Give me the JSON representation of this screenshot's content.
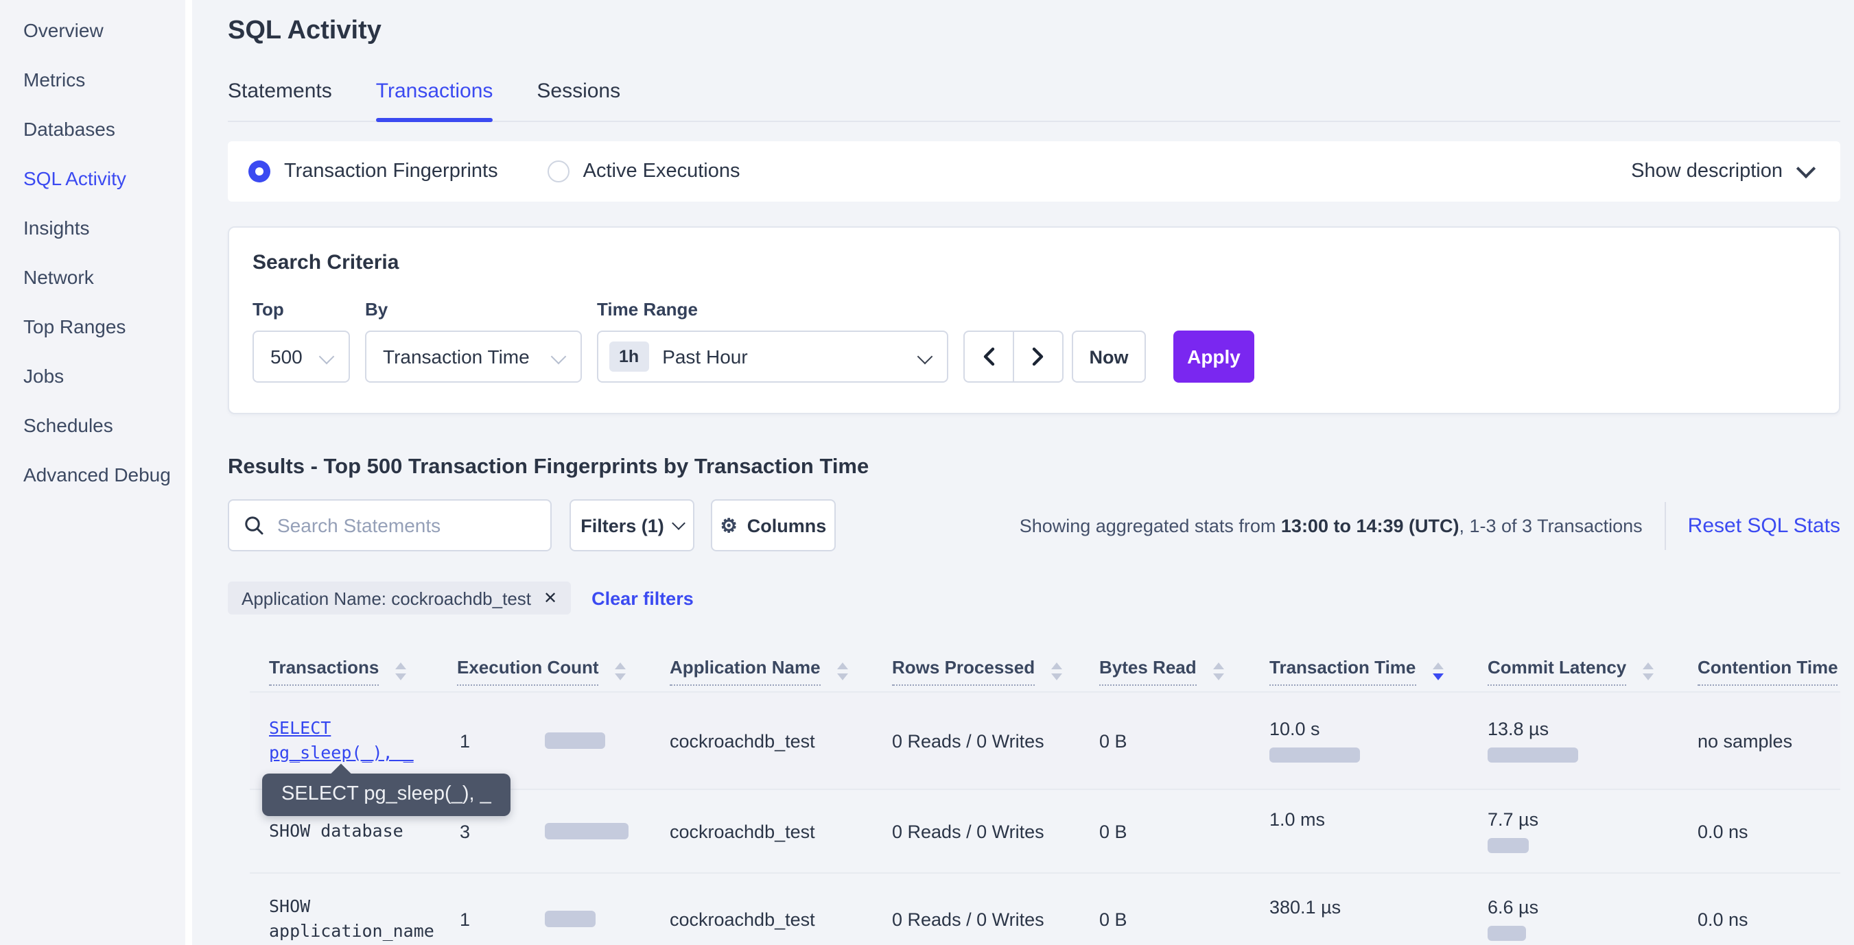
{
  "colors": {
    "accent_blue": "#3b4af1",
    "link_blue": "#3345f0",
    "apply_purple": "#7a27f0",
    "bar_fill": "#c5cbdd",
    "tooltip_bg": "#4c5568",
    "hovered_row_bg": "#f1f2f7"
  },
  "sidebar": {
    "items": [
      {
        "label": "Overview",
        "active": false
      },
      {
        "label": "Metrics",
        "active": false
      },
      {
        "label": "Databases",
        "active": false
      },
      {
        "label": "SQL Activity",
        "active": true
      },
      {
        "label": "Insights",
        "active": false
      },
      {
        "label": "Network",
        "active": false
      },
      {
        "label": "Top Ranges",
        "active": false
      },
      {
        "label": "Jobs",
        "active": false
      },
      {
        "label": "Schedules",
        "active": false
      },
      {
        "label": "Advanced Debug",
        "active": false
      }
    ]
  },
  "header": {
    "title": "SQL Activity",
    "tabs": [
      {
        "label": "Statements",
        "active": false
      },
      {
        "label": "Transactions",
        "active": true
      },
      {
        "label": "Sessions",
        "active": false
      }
    ]
  },
  "view_toggle": {
    "options": [
      {
        "label": "Transaction Fingerprints",
        "selected": true
      },
      {
        "label": "Active Executions",
        "selected": false
      }
    ],
    "show_description_label": "Show description"
  },
  "search_criteria": {
    "title": "Search Criteria",
    "top": {
      "label": "Top",
      "value": "500"
    },
    "by": {
      "label": "By",
      "value": "Transaction Time"
    },
    "time_range": {
      "label": "Time Range",
      "badge": "1h",
      "value": "Past Hour"
    },
    "now_label": "Now",
    "apply_label": "Apply"
  },
  "results": {
    "heading": "Results - Top 500 Transaction Fingerprints by Transaction Time",
    "search_placeholder": "Search Statements",
    "filters_label": "Filters (1)",
    "columns_label": "Columns",
    "stats_prefix": "Showing aggregated stats from ",
    "stats_range": "13:00 to 14:39 (UTC)",
    "stats_suffix": ", 1-3 of 3 Transactions",
    "reset_label": "Reset SQL Stats",
    "filter_chip": "Application Name: cockroachdb_test",
    "chip_close": "✕",
    "clear_filters_label": "Clear filters"
  },
  "table": {
    "columns": [
      {
        "label": "Transactions",
        "sort": null
      },
      {
        "label": "Execution Count",
        "sort": null
      },
      {
        "label": "Application Name",
        "sort": null
      },
      {
        "label": "Rows Processed",
        "sort": null
      },
      {
        "label": "Bytes Read",
        "sort": null
      },
      {
        "label": "Transaction Time",
        "sort": "desc"
      },
      {
        "label": "Commit Latency",
        "sort": null
      },
      {
        "label": "Contention Time",
        "sort": null
      }
    ],
    "tooltip_text": "SELECT pg_sleep(_), _",
    "rows": [
      {
        "transaction_line1": "SELECT",
        "transaction_line2": "pg_sleep(_), _",
        "execution_count": "1",
        "application_name": "cockroachdb_test",
        "rows_processed": "0 Reads / 0 Writes",
        "bytes_read": "0 B",
        "transaction_time": "10.0 s",
        "commit_latency": "13.8 µs",
        "contention_time": "no samples",
        "bars": {
          "execution": 44,
          "transaction_time": 66,
          "commit_latency": 66
        }
      },
      {
        "transaction_line1": "SHOW database",
        "execution_count": "3",
        "application_name": "cockroachdb_test",
        "rows_processed": "0 Reads / 0 Writes",
        "bytes_read": "0 B",
        "transaction_time": "1.0 ms",
        "commit_latency": "7.7 µs",
        "contention_time": "0.0 ns",
        "bars": {
          "execution": 61,
          "transaction_time": 0,
          "commit_latency": 30
        }
      },
      {
        "transaction_line1": "SHOW",
        "transaction_line2": "application_name",
        "execution_count": "1",
        "application_name": "cockroachdb_test",
        "rows_processed": "0 Reads / 0 Writes",
        "bytes_read": "0 B",
        "transaction_time": "380.1 µs",
        "commit_latency": "6.6 µs",
        "contention_time": "0.0 ns",
        "bars": {
          "execution": 37,
          "transaction_time": 0,
          "commit_latency": 28
        }
      }
    ]
  }
}
